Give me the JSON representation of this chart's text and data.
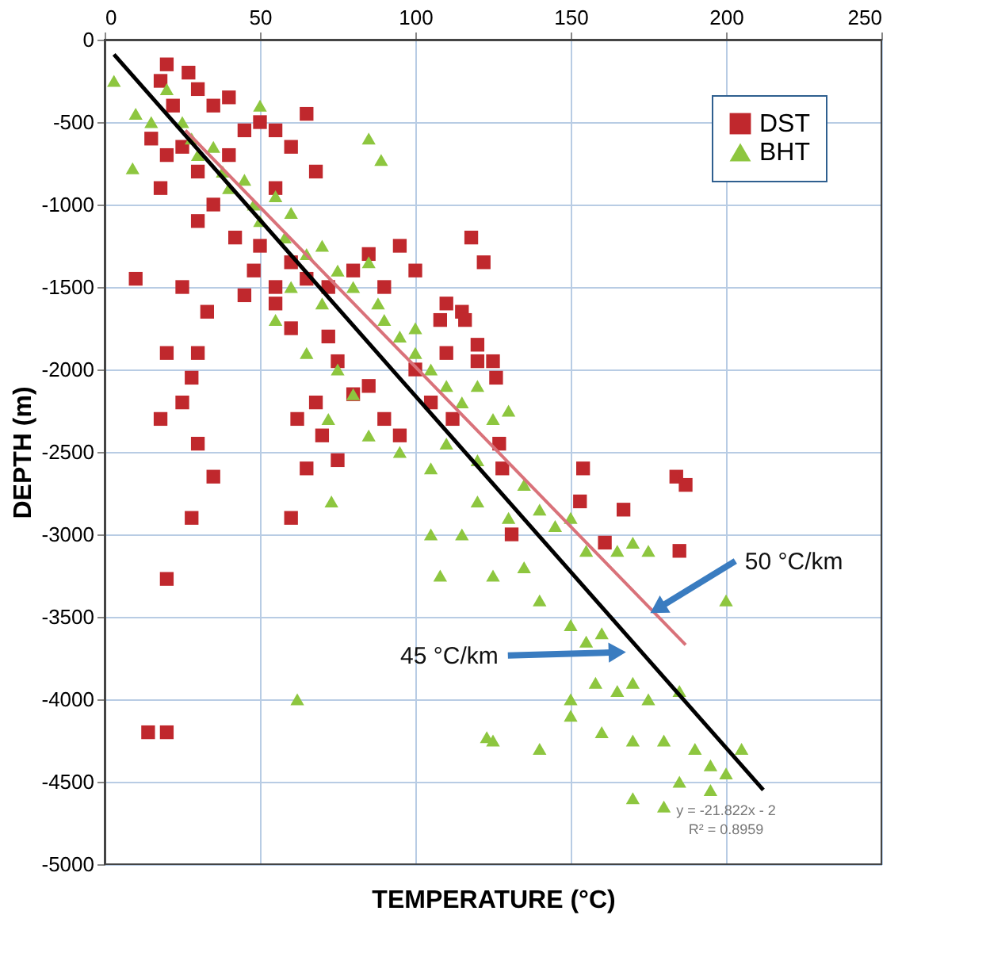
{
  "chart_data": {
    "type": "scatter",
    "xlabel": "TEMPERATURE (°C)",
    "ylabel": "DEPTH (m)",
    "xlim": [
      0,
      250
    ],
    "xticks": [
      0,
      50,
      100,
      150,
      200,
      250
    ],
    "ylim": [
      -5000,
      0
    ],
    "yticks": [
      -5000,
      -4500,
      -4000,
      -3500,
      -3000,
      -2500,
      -2000,
      -1500,
      -1000,
      -500,
      0
    ],
    "grid": true,
    "legend": "top right",
    "series": [
      {
        "name": "DST",
        "color": "#c0282d",
        "marker": "square",
        "x": [
          20,
          18,
          27,
          30,
          22,
          35,
          40,
          15,
          20,
          18,
          25,
          30,
          40,
          45,
          50,
          55,
          60,
          65,
          68,
          55,
          35,
          30,
          42,
          50,
          48,
          45,
          55,
          60,
          65,
          72,
          80,
          90,
          85,
          95,
          100,
          110,
          115,
          108,
          122,
          118,
          10,
          25,
          33,
          55,
          60,
          72,
          75,
          85,
          100,
          110,
          120,
          105,
          112,
          95,
          90,
          80,
          62,
          68,
          70,
          65,
          75,
          60,
          30,
          20,
          28,
          25,
          18,
          30,
          35,
          28,
          20,
          14,
          20,
          116,
          120,
          125,
          126,
          154,
          184,
          187,
          167,
          153,
          185,
          161,
          131,
          127,
          128
        ],
        "values": [
          -150,
          -250,
          -200,
          -300,
          -400,
          -400,
          -350,
          -600,
          -700,
          -900,
          -650,
          -800,
          -700,
          -550,
          -500,
          -550,
          -650,
          -450,
          -800,
          -900,
          -1000,
          -1100,
          -1200,
          -1250,
          -1400,
          -1550,
          -1500,
          -1350,
          -1450,
          -1500,
          -1400,
          -1500,
          -1300,
          -1250,
          -1400,
          -1600,
          -1650,
          -1700,
          -1350,
          -1200,
          -1450,
          -1500,
          -1650,
          -1600,
          -1750,
          -1800,
          -1950,
          -2100,
          -2000,
          -1900,
          -1950,
          -2200,
          -2300,
          -2400,
          -2300,
          -2150,
          -2300,
          -2200,
          -2400,
          -2600,
          -2550,
          -2900,
          -1900,
          -1900,
          -2050,
          -2200,
          -2300,
          -2450,
          -2650,
          -2900,
          -3270,
          -4200,
          -4200,
          -1700,
          -1850,
          -1950,
          -2050,
          -2600,
          -2650,
          -2700,
          -2850,
          -2800,
          -3100,
          -3050,
          -3000,
          -2450,
          -2600
        ]
      },
      {
        "name": "BHT",
        "color": "#8dc63f",
        "marker": "triangle",
        "x": [
          3,
          10,
          15,
          20,
          25,
          28,
          30,
          35,
          38,
          40,
          45,
          48,
          50,
          55,
          58,
          60,
          65,
          70,
          75,
          80,
          85,
          88,
          90,
          95,
          100,
          100,
          105,
          110,
          115,
          120,
          125,
          130,
          70,
          60,
          55,
          65,
          75,
          80,
          72,
          85,
          95,
          105,
          110,
          120,
          135,
          140,
          150,
          155,
          165,
          170,
          175,
          145,
          130,
          120,
          115,
          105,
          108,
          125,
          135,
          140,
          150,
          155,
          160,
          158,
          165,
          170,
          175,
          185,
          150,
          160,
          170,
          180,
          190,
          195,
          200,
          205,
          195,
          180,
          185,
          170,
          200,
          9,
          150,
          125,
          140,
          62,
          89,
          73,
          123,
          50,
          85
        ],
        "values": [
          -250,
          -450,
          -500,
          -300,
          -500,
          -600,
          -700,
          -650,
          -800,
          -900,
          -850,
          -1000,
          -1100,
          -950,
          -1200,
          -1050,
          -1300,
          -1250,
          -1400,
          -1500,
          -1350,
          -1600,
          -1700,
          -1800,
          -1750,
          -1900,
          -2000,
          -2100,
          -2200,
          -2100,
          -2300,
          -2250,
          -1600,
          -1500,
          -1700,
          -1900,
          -2000,
          -2150,
          -2300,
          -2400,
          -2500,
          -2600,
          -2450,
          -2550,
          -2700,
          -2850,
          -2900,
          -3100,
          -3100,
          -3050,
          -3100,
          -2950,
          -2900,
          -2800,
          -3000,
          -3000,
          -3250,
          -3250,
          -3200,
          -3400,
          -3550,
          -3650,
          -3600,
          -3900,
          -3950,
          -3900,
          -4000,
          -3950,
          -4100,
          -4200,
          -4250,
          -4250,
          -4300,
          -4400,
          -4450,
          -4300,
          -4550,
          -4650,
          -4500,
          -4600,
          -3400,
          -780,
          -4000,
          -4250,
          -4300,
          -4000,
          -730,
          -2800,
          -4230,
          -400,
          -600
        ]
      },
      {
        "type": "line",
        "color": "#000000",
        "x": [
          3,
          212
        ],
        "values": [
          -90,
          -4550
        ]
      },
      {
        "type": "line",
        "color": "#d9727a",
        "x": [
          26,
          187
        ],
        "values": [
          -550,
          -3670
        ]
      }
    ],
    "annotations": [
      {
        "text": "50 °C/km",
        "x": 178,
        "y": -3450
      },
      {
        "text": "45 °C/km",
        "x": 165,
        "y": -3715
      },
      "y = -21.822x - 2",
      "R² = 0.8959"
    ]
  }
}
